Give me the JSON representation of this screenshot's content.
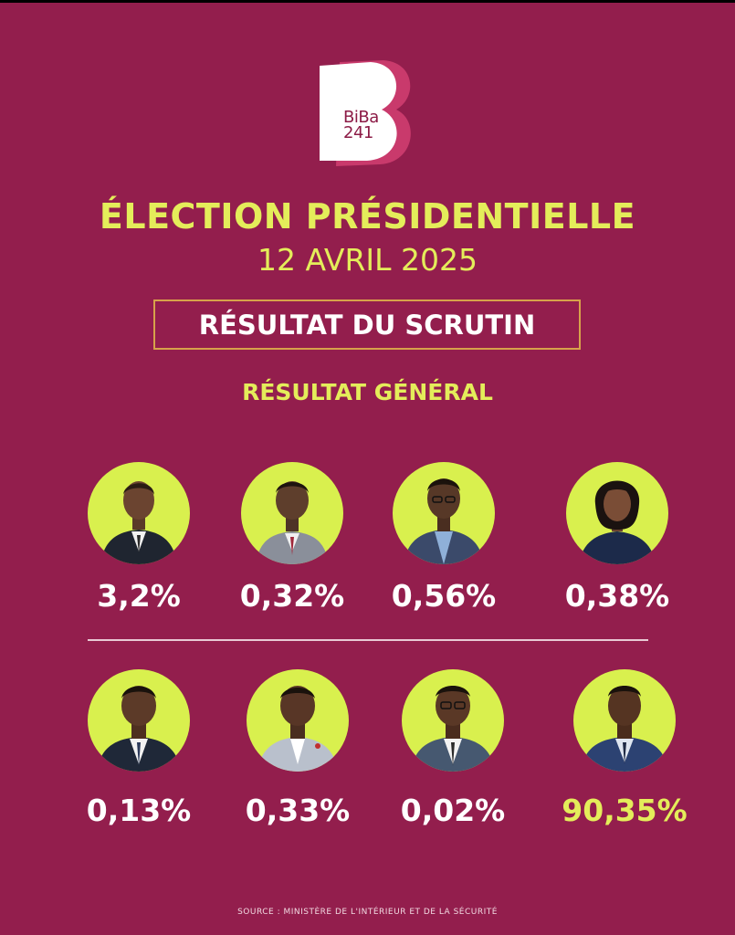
{
  "logo": {
    "line1": "BiBa",
    "line2": "241",
    "letter": "B"
  },
  "title": "ÉLECTION PRÉSIDENTIELLE",
  "date": "12 AVRIL 2025",
  "scrutin_label": "RÉSULTAT DU SCRUTIN",
  "subtitle": "RÉSULTAT GÉNÉRAL",
  "colors": {
    "background": "#931e4d",
    "accent_yellow": "#e4ed5a",
    "photo_circle": "#d9f04e",
    "box_border": "#d7a24a"
  },
  "candidates": [
    {
      "percent": "3,2%"
    },
    {
      "percent": "0,32%"
    },
    {
      "percent": "0,56%"
    },
    {
      "percent": "0,38%"
    },
    {
      "percent": "0,13%"
    },
    {
      "percent": "0,33%"
    },
    {
      "percent": "0,02%"
    },
    {
      "percent": "90,35%"
    }
  ],
  "source": "SOURCE : MINISTÈRE DE L'INTÉRIEUR ET DE LA SÉCURITÉ"
}
